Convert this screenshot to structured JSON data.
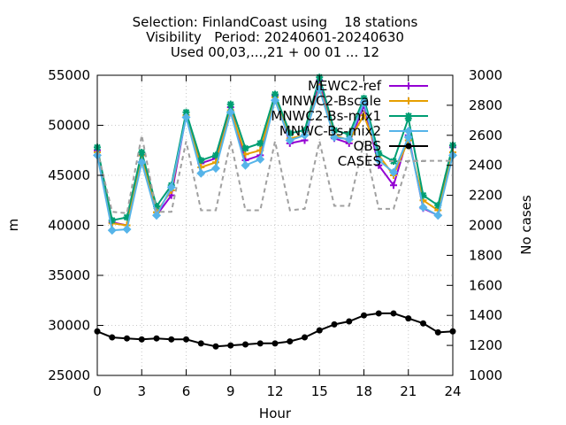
{
  "chart_data": {
    "type": "line",
    "title": [
      "Selection: FinlandCoast using    18 stations",
      "Visibility   Period: 20240601-20240630",
      "Used 00,03,...,21 + 00 01 ... 12"
    ],
    "xlabel": "Hour",
    "ylabel": "m",
    "y2label": "No cases",
    "xlim": [
      0,
      24
    ],
    "ylim": [
      25000,
      55000
    ],
    "y2lim": [
      1000,
      3000
    ],
    "xticks": [
      "0",
      "3",
      "6",
      "9",
      "12",
      "15",
      "18",
      "21",
      "24"
    ],
    "yticks": [
      "25000",
      "30000",
      "35000",
      "40000",
      "45000",
      "50000",
      "55000"
    ],
    "y2ticks": [
      "1000",
      "1200",
      "1400",
      "1600",
      "1800",
      "2000",
      "2200",
      "2400",
      "2600",
      "2800",
      "3000"
    ],
    "grid": true,
    "legend_position": "top-right",
    "x": [
      0,
      1,
      2,
      3,
      4,
      5,
      6,
      7,
      8,
      9,
      10,
      11,
      12,
      13,
      14,
      15,
      16,
      17,
      18,
      19,
      20,
      21,
      22,
      23,
      24
    ],
    "series": [
      {
        "name": "MEWC2-ref",
        "color": "#9400d3",
        "marker": "plus",
        "axis": "y",
        "values": [
          47500,
          40300,
          40000,
          47000,
          41000,
          43000,
          51000,
          46200,
          46700,
          51800,
          46500,
          47000,
          53000,
          48200,
          48500,
          54500,
          48700,
          48200,
          52000,
          46000,
          44000,
          49000,
          41700,
          41000,
          47800
        ]
      },
      {
        "name": "MNWC2-Bscale",
        "color": "#e69f00",
        "marker": "plus",
        "axis": "y",
        "values": [
          47300,
          40200,
          40000,
          47000,
          41300,
          43500,
          51000,
          45800,
          46300,
          51500,
          47100,
          47500,
          52800,
          48700,
          49000,
          53800,
          49000,
          48500,
          51000,
          47000,
          45000,
          48500,
          42500,
          41500,
          47300
        ]
      },
      {
        "name": "MNWC2-Bs-mix1",
        "color": "#009e73",
        "marker": "star",
        "axis": "y",
        "values": [
          47800,
          40500,
          40800,
          47300,
          41900,
          44000,
          51300,
          46500,
          47000,
          52100,
          47700,
          48200,
          53100,
          49200,
          49500,
          54800,
          49500,
          49100,
          52700,
          47200,
          46400,
          50700,
          43000,
          42000,
          48000
        ]
      },
      {
        "name": "MNWC-Bs-mix2",
        "color": "#56b4e9",
        "marker": "diamond",
        "axis": "y",
        "values": [
          47000,
          39500,
          39600,
          46300,
          41000,
          43800,
          50800,
          45200,
          45700,
          51300,
          46000,
          46600,
          52500,
          48500,
          49000,
          53600,
          48800,
          48600,
          52300,
          46500,
          45300,
          48800,
          41800,
          41000,
          47000
        ]
      },
      {
        "name": "OBS",
        "color": "#000000",
        "marker": "circle",
        "axis": "y",
        "values": [
          29400,
          28800,
          28700,
          28600,
          28700,
          28600,
          28600,
          28200,
          27900,
          28000,
          28100,
          28200,
          28200,
          28400,
          28800,
          29500,
          30100,
          30400,
          31000,
          31200,
          31200,
          30700,
          30200,
          29300,
          29400
        ]
      },
      {
        "name": "CASES",
        "color": "#a0a0a0",
        "marker": "none",
        "dashed": true,
        "axis": "y2",
        "values": [
          2500,
          2090,
          2080,
          2600,
          2090,
          2090,
          2560,
          2100,
          2100,
          2560,
          2100,
          2100,
          2560,
          2100,
          2110,
          2560,
          2130,
          2130,
          2560,
          2110,
          2110,
          2430,
          2430,
          2430,
          2430
        ]
      }
    ]
  }
}
